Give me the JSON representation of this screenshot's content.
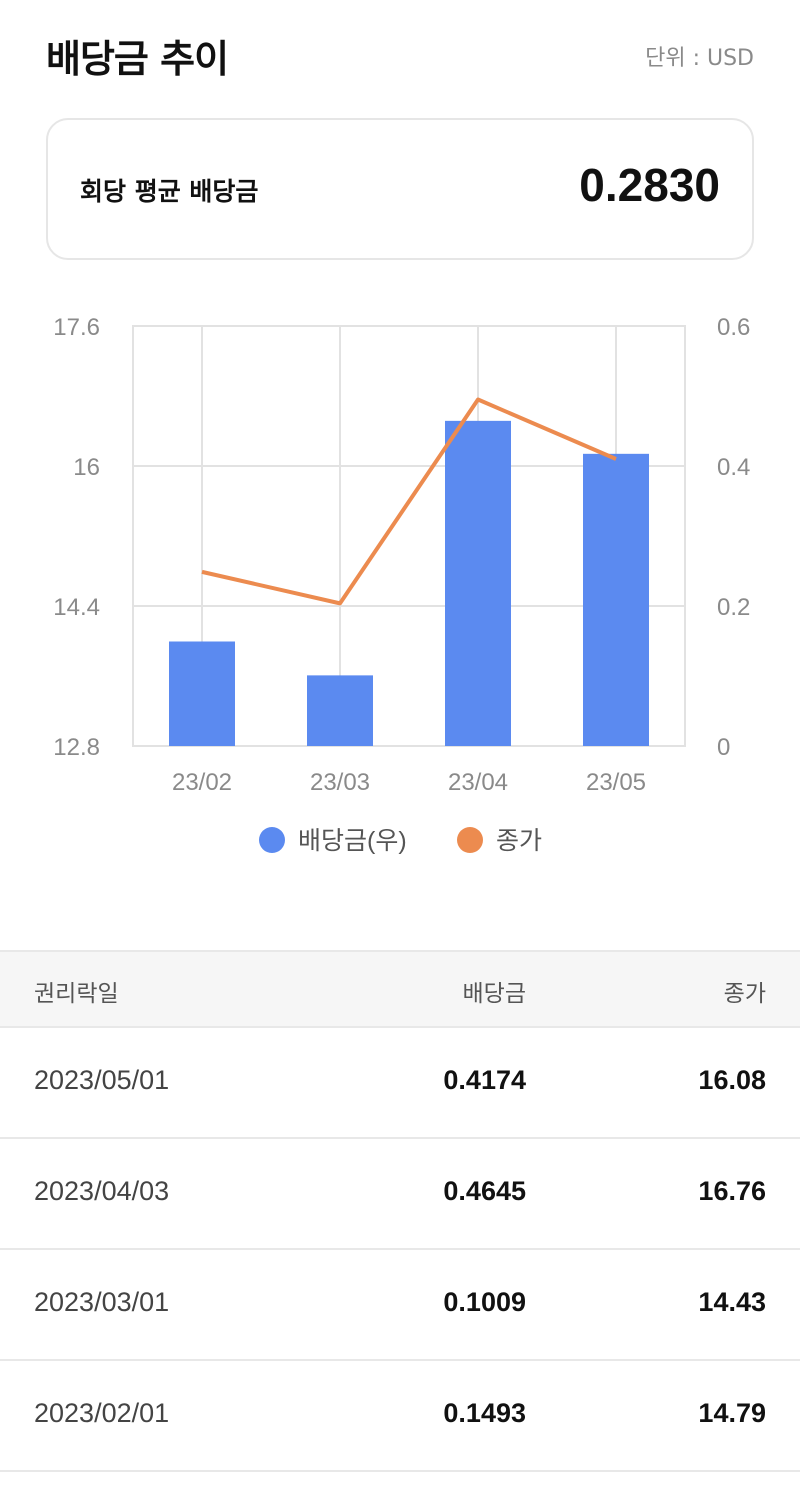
{
  "header": {
    "title": "배당금 추이",
    "unit": "단위 : USD"
  },
  "summary": {
    "label": "회당 평균 배당금",
    "value": "0.2830"
  },
  "colors": {
    "bar": "#5b8af0",
    "line": "#ec8b4f",
    "grid": "#e2e2e2",
    "axis_text": "#8a8a8a"
  },
  "chart_data": {
    "type": "bar",
    "categories": [
      "23/02",
      "23/03",
      "23/04",
      "23/05"
    ],
    "series": [
      {
        "name": "배당금(우)",
        "kind": "bar",
        "axis": "right",
        "values": [
          0.1493,
          0.1009,
          0.4645,
          0.4174
        ]
      },
      {
        "name": "종가",
        "kind": "line",
        "axis": "left",
        "values": [
          14.79,
          14.43,
          16.76,
          16.08
        ]
      }
    ],
    "left_axis": {
      "ylim": [
        12.8,
        17.6
      ],
      "ticks": [
        "17.6",
        "16",
        "14.4",
        "12.8"
      ]
    },
    "right_axis": {
      "ylim": [
        0,
        0.6
      ],
      "ticks": [
        "0.6",
        "0.4",
        "0.2",
        "0"
      ]
    },
    "legend": [
      "배당금(우)",
      "종가"
    ],
    "legend_position": "bottom",
    "grid": true
  },
  "table": {
    "headers": {
      "date": "권리락일",
      "dividend": "배당금",
      "close": "종가"
    },
    "rows": [
      {
        "date": "2023/05/01",
        "dividend": "0.4174",
        "close": "16.08"
      },
      {
        "date": "2023/04/03",
        "dividend": "0.4645",
        "close": "16.76"
      },
      {
        "date": "2023/03/01",
        "dividend": "0.1009",
        "close": "14.43"
      },
      {
        "date": "2023/02/01",
        "dividend": "0.1493",
        "close": "14.79"
      }
    ]
  }
}
